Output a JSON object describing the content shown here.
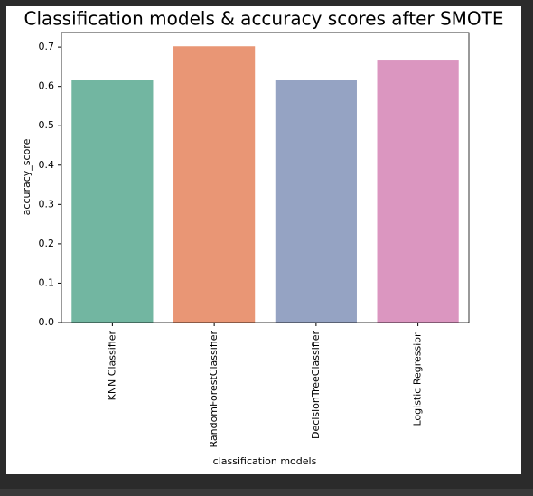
{
  "chart_data": {
    "type": "bar",
    "title": "Classification models & accuracy scores after SMOTE",
    "x_label": "classification models",
    "y_label": "accuracy_score",
    "categories": [
      "KNN Classifier",
      "RandomForestClassifier",
      "DecisionTreeClassifier",
      "Logistic Regression"
    ],
    "values": [
      0.617,
      0.702,
      0.617,
      0.668
    ],
    "colors": [
      "#72b6a1",
      "#e99675",
      "#95a3c3",
      "#db96c0"
    ],
    "ylim": [
      0,
      0.737
    ],
    "yticks": [
      {
        "value": 0,
        "label": "0.0"
      },
      0.1,
      0.2,
      0.3,
      0.4,
      0.5,
      0.6,
      0.7
    ],
    "grid": false
  }
}
